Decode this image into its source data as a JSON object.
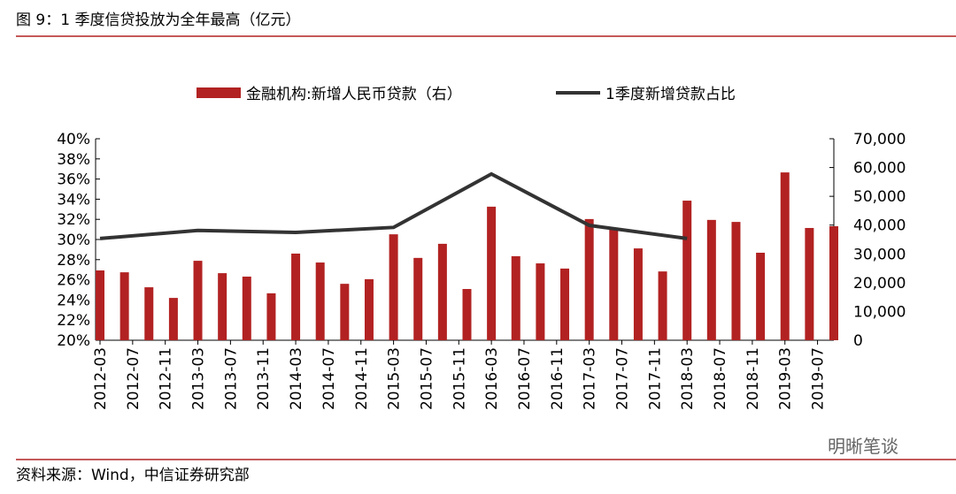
{
  "header": "图 9：1 季度信贷投放为全年最高（亿元）",
  "source": "资料来源：Wind，中信证券研究部",
  "watermark": "明晰笔谈",
  "chart_data": {
    "type": "bar_line",
    "x": [
      "2012-03",
      "2012-06",
      "2012-09",
      "2012-12",
      "2013-03",
      "2013-06",
      "2013-09",
      "2013-12",
      "2014-03",
      "2014-06",
      "2014-09",
      "2014-12",
      "2015-03",
      "2015-06",
      "2015-09",
      "2015-12",
      "2016-03",
      "2016-06",
      "2016-09",
      "2016-12",
      "2017-03",
      "2017-06",
      "2017-09",
      "2017-12",
      "2018-03",
      "2018-06",
      "2018-09",
      "2018-12",
      "2019-03",
      "2019-06",
      "2019-09"
    ],
    "xticks": [
      "2012-03",
      "2012-07",
      "2012-11",
      "2013-03",
      "2013-07",
      "2013-11",
      "2014-03",
      "2014-07",
      "2014-11",
      "2015-03",
      "2015-07",
      "2015-11",
      "2016-03",
      "2016-07",
      "2016-11",
      "2017-03",
      "2017-07",
      "2017-11",
      "2018-03",
      "2018-07",
      "2018-11",
      "2019-03",
      "2019-07"
    ],
    "series": [
      {
        "name": "金融机构:新增人民币贷款（右）",
        "color": "#b22222",
        "axis": "y2",
        "values": [
          24250,
          23600,
          18400,
          14700,
          27600,
          23300,
          22100,
          16300,
          30100,
          27000,
          19600,
          21200,
          36800,
          28600,
          33500,
          17800,
          46400,
          29200,
          26700,
          24900,
          42100,
          38700,
          31900,
          23900,
          48500,
          41800,
          41100,
          30400,
          58300,
          39000,
          39600
        ]
      },
      {
        "name": "1季度新增贷款占比",
        "color": "#333333",
        "x": [
          "2012-03",
          "2013-03",
          "2014-03",
          "2015-03",
          "2016-03",
          "2017-03",
          "2018-03"
        ],
        "values": [
          30.1,
          30.9,
          30.7,
          31.2,
          36.5,
          31.4,
          30.1
        ]
      }
    ],
    "ylim": [
      20,
      40
    ],
    "yticks": [
      {
        "value": 20,
        "label": "20%"
      },
      {
        "value": 22,
        "label": "22%"
      },
      {
        "value": 24,
        "label": "24%"
      },
      {
        "value": 26,
        "label": "26%"
      },
      {
        "value": 28,
        "label": "28%"
      },
      {
        "value": 30,
        "label": "30%"
      },
      {
        "value": 32,
        "label": "32%"
      },
      {
        "value": 34,
        "label": "34%"
      },
      {
        "value": 36,
        "label": "36%"
      },
      {
        "value": 38,
        "label": "38%"
      },
      {
        "value": 40,
        "label": "40%"
      }
    ],
    "y2lim": [
      0,
      70000
    ],
    "y2ticks": [
      0,
      {
        "value": 10000,
        "label": "10,000"
      },
      {
        "value": 20000,
        "label": "20,000"
      },
      {
        "value": 30000,
        "label": "30,000"
      },
      {
        "value": 40000,
        "label": "40,000"
      },
      {
        "value": 50000,
        "label": "50,000"
      },
      {
        "value": 60000,
        "label": "60,000"
      },
      {
        "value": 70000,
        "label": "70,000"
      }
    ]
  }
}
